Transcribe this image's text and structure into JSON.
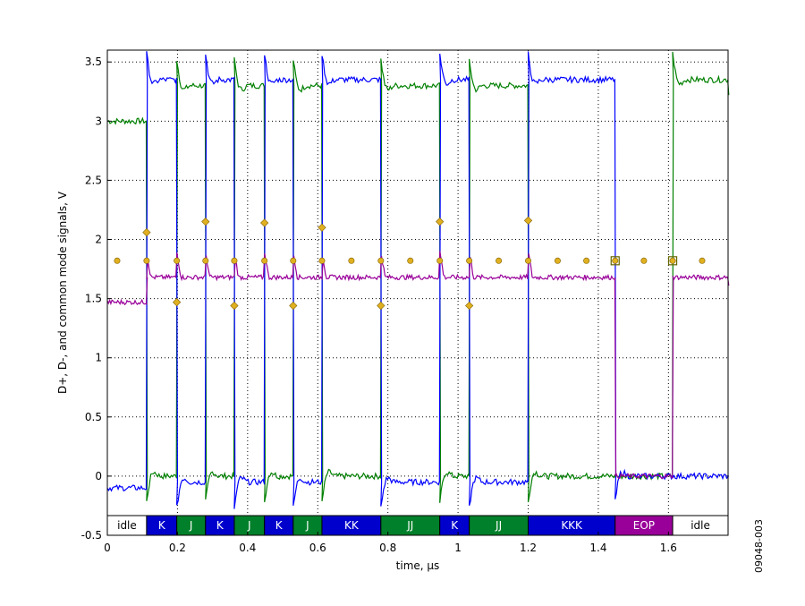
{
  "chart_data": {
    "type": "line",
    "xlabel": "time, µs",
    "ylabel": "D+, D-, and common mode signals, V",
    "xlim": [
      0,
      1.77
    ],
    "ylim": [
      -0.5,
      3.6
    ],
    "x_ticks": [
      0,
      0.2,
      0.4,
      0.6,
      0.8,
      1,
      1.2,
      1.4,
      1.6
    ],
    "x_tick_labels": [
      "0",
      "0.2",
      "0.4",
      "0.6",
      "0.8",
      "1",
      "1.2",
      "1.4",
      "1.6"
    ],
    "y_ticks": [
      -0.5,
      0,
      0.5,
      1,
      1.5,
      2,
      2.5,
      3,
      3.5
    ],
    "y_tick_labels": [
      "-0.5",
      "0",
      "0.5",
      "1",
      "1.5",
      "2",
      "2.5",
      "3",
      "3.5"
    ],
    "grid": true,
    "figure_id": "09048-003",
    "colors": {
      "d_minus": "#0000ff",
      "d_plus": "#008000",
      "common_mode": "#990099",
      "marker": "#e0b020",
      "marker_edge": "#806000",
      "k_state": "#0000cc",
      "j_state": "#00802a",
      "eop_state": "#990099",
      "idle_state": "#ffffff"
    },
    "transitions": [
      0.112,
      0.198,
      0.28,
      0.362,
      0.448,
      0.53,
      0.612,
      0.78,
      0.948,
      1.032,
      1.2,
      1.448,
      1.612
    ],
    "series": [
      {
        "key": "d_minus",
        "x": [
          0,
          0.112,
          0.198,
          0.28,
          0.362,
          0.448,
          0.53,
          0.612,
          0.78,
          0.948,
          1.032,
          1.2,
          1.448,
          1.612,
          1.77
        ],
        "y": [
          -0.1,
          3.35,
          -0.05,
          3.35,
          -0.05,
          3.35,
          -0.05,
          3.35,
          -0.05,
          3.35,
          -0.05,
          3.35,
          0,
          0,
          0
        ]
      },
      {
        "key": "d_plus",
        "x": [
          0,
          0.112,
          0.198,
          0.28,
          0.362,
          0.448,
          0.53,
          0.612,
          0.78,
          0.948,
          1.032,
          1.2,
          1.448,
          1.612,
          1.77
        ],
        "y": [
          3.0,
          0,
          3.3,
          0,
          3.3,
          0,
          3.3,
          0,
          3.3,
          0,
          3.3,
          0,
          0,
          3.35,
          3.22
        ]
      },
      {
        "key": "common_mode",
        "x": [
          0,
          0.112,
          1.448,
          1.612,
          1.77
        ],
        "y": [
          1.47,
          1.68,
          0,
          1.68,
          1.61
        ]
      }
    ],
    "midpoint_markers": {
      "x": [
        0.028,
        0.112,
        0.198,
        0.28,
        0.362,
        0.448,
        0.53,
        0.612,
        0.696,
        0.78,
        0.864,
        0.948,
        1.032,
        1.116,
        1.2,
        1.284,
        1.366,
        1.448,
        1.53,
        1.612,
        1.696
      ],
      "y": 1.82
    },
    "transition_markers": [
      {
        "x": 0.112,
        "y": 2.06
      },
      {
        "x": 0.198,
        "y": 1.47
      },
      {
        "x": 0.28,
        "y": 2.15
      },
      {
        "x": 0.362,
        "y": 1.44
      },
      {
        "x": 0.448,
        "y": 2.14
      },
      {
        "x": 0.53,
        "y": 1.44
      },
      {
        "x": 0.612,
        "y": 2.1
      },
      {
        "x": 0.78,
        "y": 1.44
      },
      {
        "x": 0.948,
        "y": 2.15
      },
      {
        "x": 1.032,
        "y": 1.44
      },
      {
        "x": 1.2,
        "y": 2.16
      }
    ],
    "square_markers": [
      {
        "x": 1.448,
        "y": 1.82
      },
      {
        "x": 1.612,
        "y": 1.82
      }
    ],
    "state_bar": [
      {
        "label": "idle",
        "state": "idle",
        "x0": 0,
        "x1": 0.112
      },
      {
        "label": "K",
        "state": "k",
        "x0": 0.112,
        "x1": 0.198
      },
      {
        "label": "J",
        "state": "j",
        "x0": 0.198,
        "x1": 0.28
      },
      {
        "label": "K",
        "state": "k",
        "x0": 0.28,
        "x1": 0.362
      },
      {
        "label": "J",
        "state": "j",
        "x0": 0.362,
        "x1": 0.448
      },
      {
        "label": "K",
        "state": "k",
        "x0": 0.448,
        "x1": 0.53
      },
      {
        "label": "J",
        "state": "j",
        "x0": 0.53,
        "x1": 0.612
      },
      {
        "label": "KK",
        "state": "k",
        "x0": 0.612,
        "x1": 0.78
      },
      {
        "label": "JJ",
        "state": "j",
        "x0": 0.78,
        "x1": 0.948
      },
      {
        "label": "K",
        "state": "k",
        "x0": 0.948,
        "x1": 1.032
      },
      {
        "label": "JJ",
        "state": "j",
        "x0": 1.032,
        "x1": 1.2
      },
      {
        "label": "KKK",
        "state": "k",
        "x0": 1.2,
        "x1": 1.448
      },
      {
        "label": "EOP",
        "state": "eop",
        "x0": 1.448,
        "x1": 1.612
      },
      {
        "label": "idle",
        "state": "idle",
        "x0": 1.612,
        "x1": 1.77
      }
    ]
  }
}
